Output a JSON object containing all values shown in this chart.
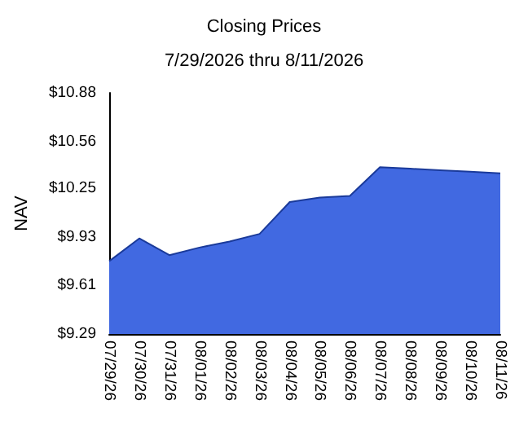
{
  "chart_data": {
    "type": "area",
    "title": "Closing Prices",
    "subtitle": "7/29/2026 thru 8/11/2026",
    "ylabel": "NAV",
    "categories": [
      "07/29/26",
      "07/30/26",
      "07/31/26",
      "08/01/26",
      "08/02/26",
      "08/03/26",
      "08/04/26",
      "08/05/26",
      "08/06/26",
      "08/07/26",
      "08/08/26",
      "08/09/26",
      "08/10/26",
      "08/11/26"
    ],
    "series": [
      {
        "color": "#4169e1",
        "values": [
          9.77,
          9.92,
          9.81,
          9.86,
          9.9,
          9.95,
          10.16,
          10.19,
          10.2,
          10.39,
          10.38,
          10.37,
          10.36,
          10.35
        ]
      }
    ],
    "ylim": [
      9.29,
      10.88
    ],
    "yticks": [
      {
        "value": 9.29,
        "label": "$9.29"
      },
      {
        "value": 9.61,
        "label": "$9.61"
      },
      {
        "value": 9.93,
        "label": "$9.93"
      },
      {
        "value": 10.25,
        "label": "$10.25"
      },
      {
        "value": 10.56,
        "label": "$10.56"
      },
      {
        "value": 10.88,
        "label": "$10.88"
      }
    ],
    "marker": "none"
  }
}
